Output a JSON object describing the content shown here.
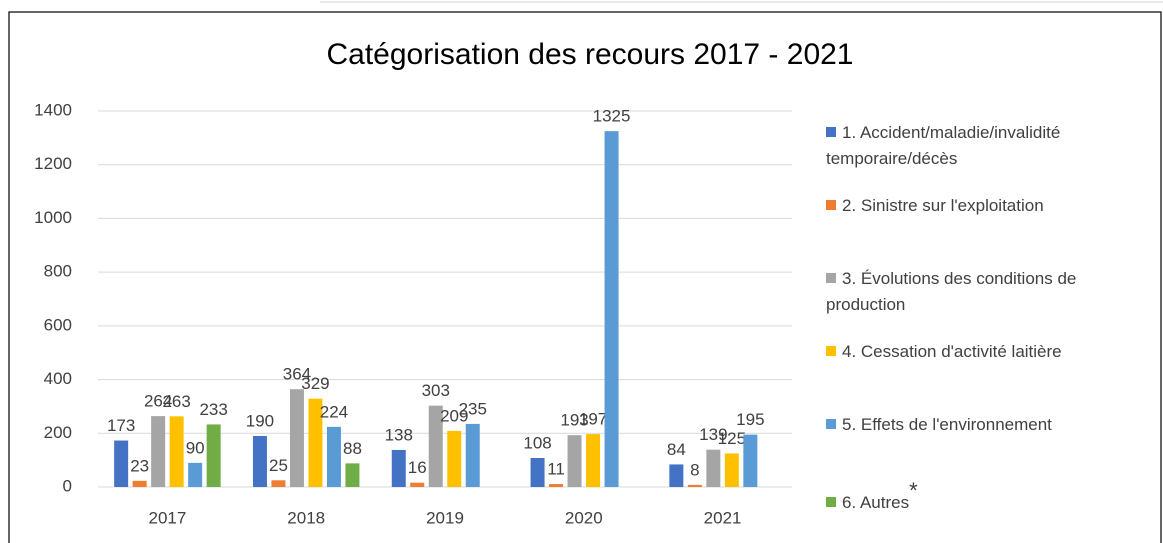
{
  "chart_data": {
    "type": "bar",
    "title": "Catégorisation des recours 2017 - 2021",
    "categories": [
      "2017",
      "2018",
      "2019",
      "2020",
      "2021"
    ],
    "series": [
      {
        "name": "1. Accident/maladie/invalidité temporaire/décès",
        "color": "#4472c4",
        "values": [
          173,
          190,
          138,
          108,
          84
        ]
      },
      {
        "name": "2. Sinistre sur l'exploitation",
        "color": "#ed7d31",
        "values": [
          23,
          25,
          16,
          11,
          8
        ]
      },
      {
        "name": "3. Évolutions des conditions de production",
        "color": "#a5a5a5",
        "values": [
          264,
          364,
          303,
          193,
          139
        ]
      },
      {
        "name": "4. Cessation d'activité laitière",
        "color": "#ffc000",
        "values": [
          263,
          329,
          209,
          197,
          125
        ]
      },
      {
        "name": "5. Effets de l'environnement",
        "color": "#5b9bd5",
        "values": [
          90,
          224,
          235,
          1325,
          195
        ]
      },
      {
        "name": "6. Autres",
        "color": "#70ad47",
        "values": [
          233,
          88,
          null,
          null,
          null
        ]
      }
    ],
    "annotation": "*",
    "ylim": [
      0,
      1400
    ],
    "yticks": [
      0,
      200,
      400,
      600,
      800,
      1000,
      1200,
      1400
    ],
    "grid": true,
    "legend": "right"
  }
}
